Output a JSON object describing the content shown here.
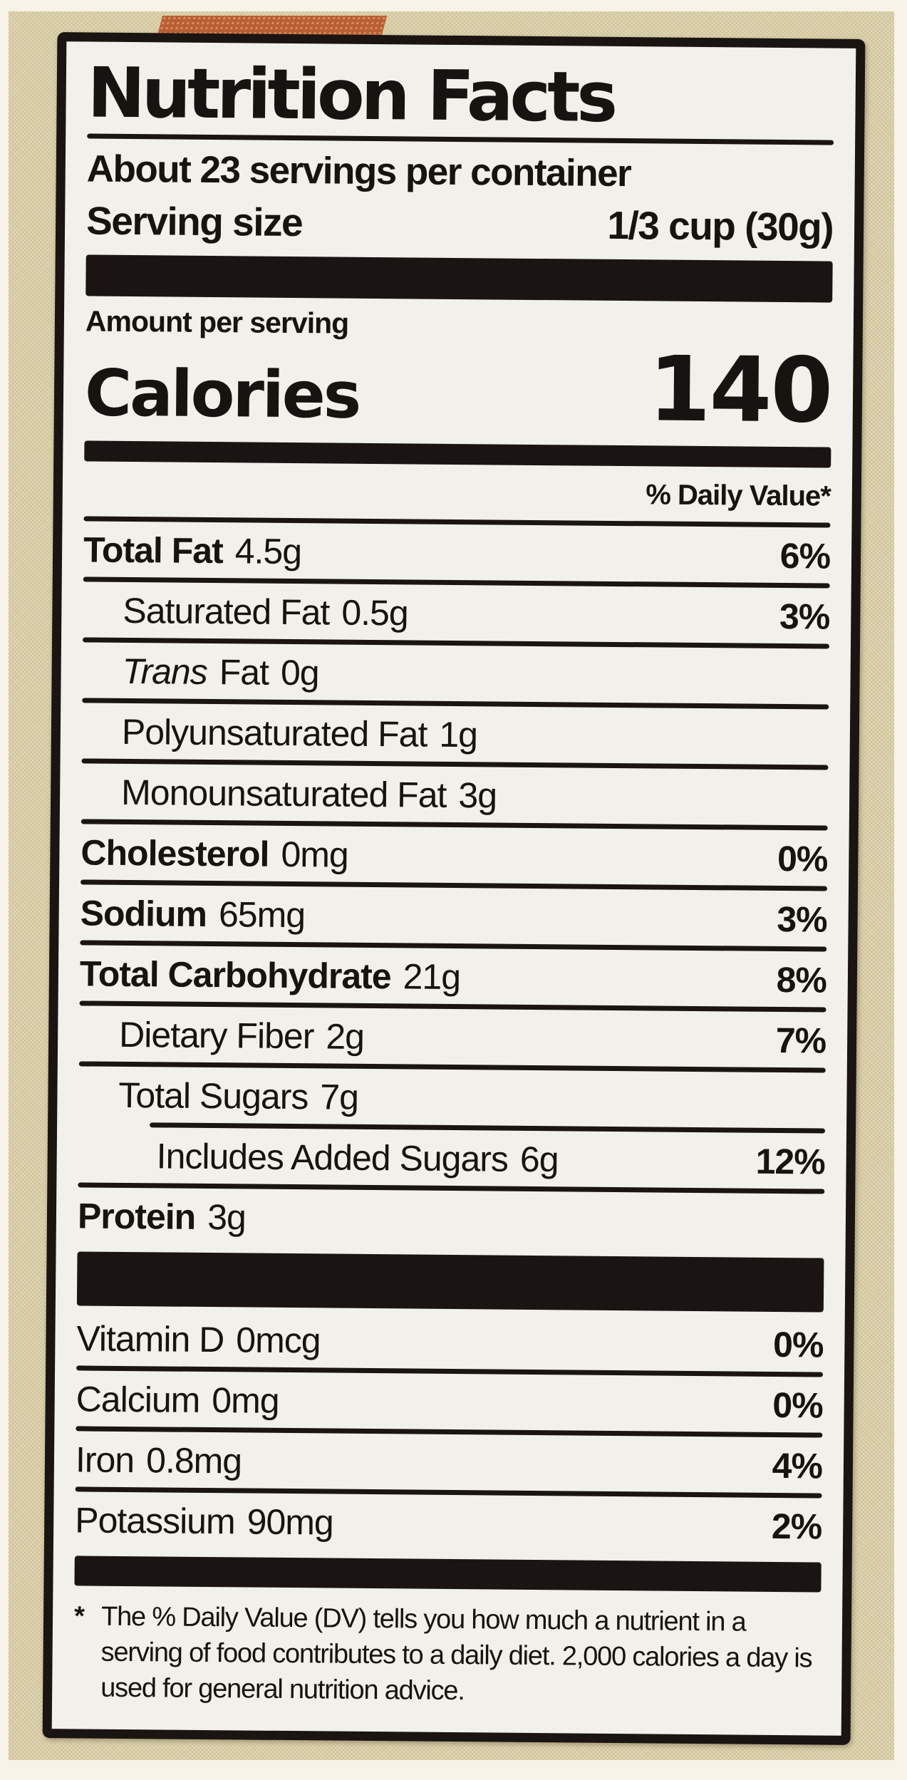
{
  "label": {
    "title": "Nutrition Facts",
    "servings_per_container": "About 23 servings per container",
    "serving_size_label": "Serving size",
    "serving_size_value": "1/3 cup (30g)",
    "amount_per_serving": "Amount per serving",
    "calories_label": "Calories",
    "calories_value": "140",
    "daily_value_header": "% Daily Value*",
    "rows": [
      {
        "name": "Total Fat",
        "amount": "4.5g",
        "dv": "6%"
      },
      {
        "name": "Saturated Fat",
        "amount": "0.5g",
        "dv": "3%"
      },
      {
        "name_italic": "Trans",
        "name": "Fat",
        "amount": "0g",
        "dv": ""
      },
      {
        "name": "Polyunsaturated Fat",
        "amount": "1g",
        "dv": ""
      },
      {
        "name": "Monounsaturated Fat",
        "amount": "3g",
        "dv": ""
      },
      {
        "name": "Cholesterol",
        "amount": "0mg",
        "dv": "0%"
      },
      {
        "name": "Sodium",
        "amount": "65mg",
        "dv": "3%"
      },
      {
        "name": "Total Carbohydrate",
        "amount": "21g",
        "dv": "8%"
      },
      {
        "name": "Dietary Fiber",
        "amount": "2g",
        "dv": "7%"
      },
      {
        "name": "Total Sugars",
        "amount": "7g",
        "dv": ""
      },
      {
        "name": "Includes Added Sugars",
        "amount": "6g",
        "dv": "12%"
      },
      {
        "name": "Protein",
        "amount": "3g",
        "dv": ""
      }
    ],
    "micronutrients": [
      {
        "name": "Vitamin D",
        "amount": "0mcg",
        "dv": "0%"
      },
      {
        "name": "Calcium",
        "amount": "0mg",
        "dv": "0%"
      },
      {
        "name": "Iron",
        "amount": "0.8mg",
        "dv": "4%"
      },
      {
        "name": "Potassium",
        "amount": "90mg",
        "dv": "2%"
      }
    ],
    "footnote_marker": "*",
    "footnote": "The % Daily Value (DV) tells you how much a nutrient in a serving of food contributes to a daily diet. 2,000 calories a day is used for general nutrition advice.",
    "colors": {
      "label_background": "#f2f0ea",
      "label_border": "#1a1512",
      "package_background": "#d8cda6",
      "deco_strip": "#b95f35",
      "text": "#171310"
    }
  }
}
